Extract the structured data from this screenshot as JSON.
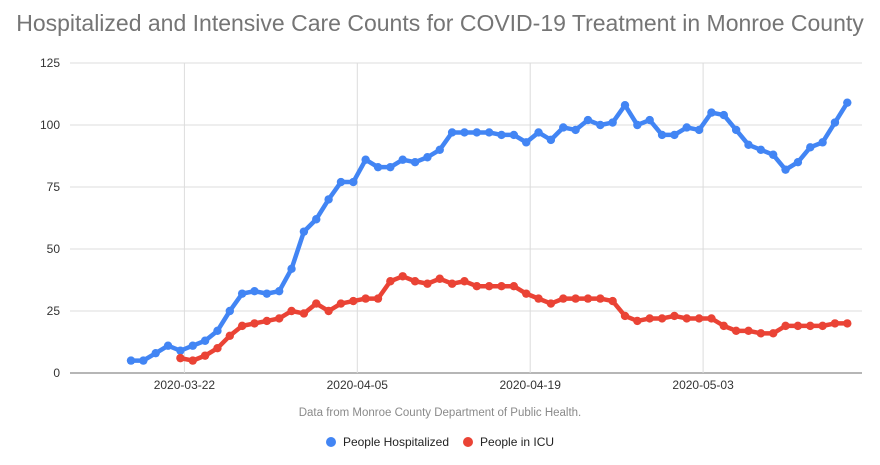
{
  "chart_data": {
    "type": "line",
    "title": "Hospitalized and Intensive Care Counts for COVID-19 Treatment in Monroe County",
    "footnote": "Data from Monroe County Department of Public Health.",
    "xlabel": "",
    "ylabel": "",
    "ylim": [
      0,
      125
    ],
    "yticks": [
      0,
      25,
      50,
      75,
      100,
      125
    ],
    "ytick_labels": [
      "0",
      "25",
      "50",
      "75",
      "100",
      "125"
    ],
    "xtick_labels": [
      "2020-03-22",
      "2020-04-05",
      "2020-04-19",
      "2020-05-03"
    ],
    "x_start_date": "2020-03-18",
    "grid": true,
    "legend_position": "bottom",
    "series": [
      {
        "name": "People Hospitalized",
        "color": "#4285f4",
        "start_date": "2020-03-18",
        "values": [
          5,
          5,
          8,
          11,
          9,
          11,
          13,
          17,
          25,
          32,
          33,
          32,
          33,
          42,
          57,
          62,
          70,
          77,
          77,
          86,
          83,
          83,
          86,
          85,
          87,
          90,
          97,
          97,
          97,
          97,
          96,
          96,
          93,
          97,
          94,
          99,
          98,
          102,
          100,
          101,
          108,
          100,
          102,
          96,
          96,
          99,
          98,
          105,
          104,
          98,
          92,
          90,
          88,
          82,
          85,
          91,
          93,
          101,
          109
        ]
      },
      {
        "name": "People in ICU",
        "color": "#ea4335",
        "start_date": "2020-03-22",
        "values": [
          6,
          5,
          7,
          10,
          15,
          19,
          20,
          21,
          22,
          25,
          24,
          28,
          25,
          28,
          29,
          30,
          30,
          37,
          39,
          37,
          36,
          38,
          36,
          37,
          35,
          35,
          35,
          35,
          32,
          30,
          28,
          30,
          30,
          30,
          30,
          29,
          23,
          21,
          22,
          22,
          23,
          22,
          22,
          22,
          19,
          17,
          17,
          16,
          16,
          19,
          19,
          19,
          19,
          20,
          20
        ]
      }
    ]
  }
}
